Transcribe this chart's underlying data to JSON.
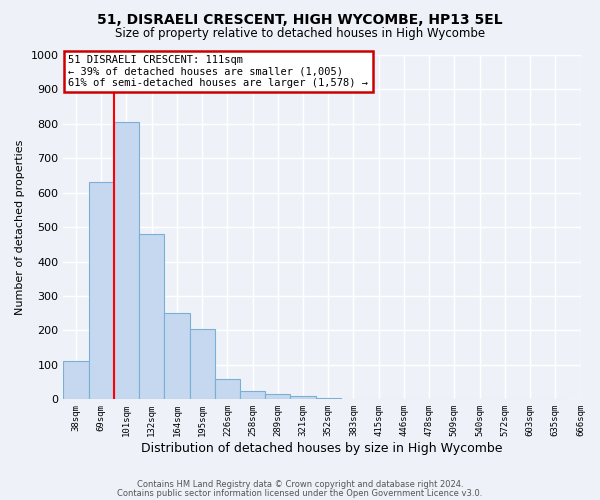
{
  "title": "51, DISRAELI CRESCENT, HIGH WYCOMBE, HP13 5EL",
  "subtitle": "Size of property relative to detached houses in High Wycombe",
  "xlabel": "Distribution of detached houses by size in High Wycombe",
  "ylabel": "Number of detached properties",
  "bar_color": "#c5d8f0",
  "bar_edge_color": "#7bafd4",
  "bar_values": [
    110,
    630,
    805,
    480,
    250,
    205,
    60,
    25,
    15,
    10,
    5,
    0,
    0,
    0,
    0,
    0,
    0,
    0,
    0,
    0
  ],
  "bin_labels": [
    "38sqm",
    "69sqm",
    "101sqm",
    "132sqm",
    "164sqm",
    "195sqm",
    "226sqm",
    "258sqm",
    "289sqm",
    "321sqm",
    "352sqm",
    "383sqm",
    "415sqm",
    "446sqm",
    "478sqm",
    "509sqm",
    "540sqm",
    "572sqm",
    "603sqm",
    "635sqm",
    "666sqm"
  ],
  "ylim": [
    0,
    1000
  ],
  "yticks": [
    0,
    100,
    200,
    300,
    400,
    500,
    600,
    700,
    800,
    900,
    1000
  ],
  "property_line_x": 1.5,
  "annotation_title": "51 DISRAELI CRESCENT: 111sqm",
  "annotation_line1": "← 39% of detached houses are smaller (1,005)",
  "annotation_line2": "61% of semi-detached houses are larger (1,578) →",
  "annotation_box_color": "#ffffff",
  "annotation_box_edge": "#cc0000",
  "footer1": "Contains HM Land Registry data © Crown copyright and database right 2024.",
  "footer2": "Contains public sector information licensed under the Open Government Licence v3.0.",
  "background_color": "#eef2f8",
  "plot_bg_color": "#eef2f8",
  "grid_color": "#ffffff"
}
